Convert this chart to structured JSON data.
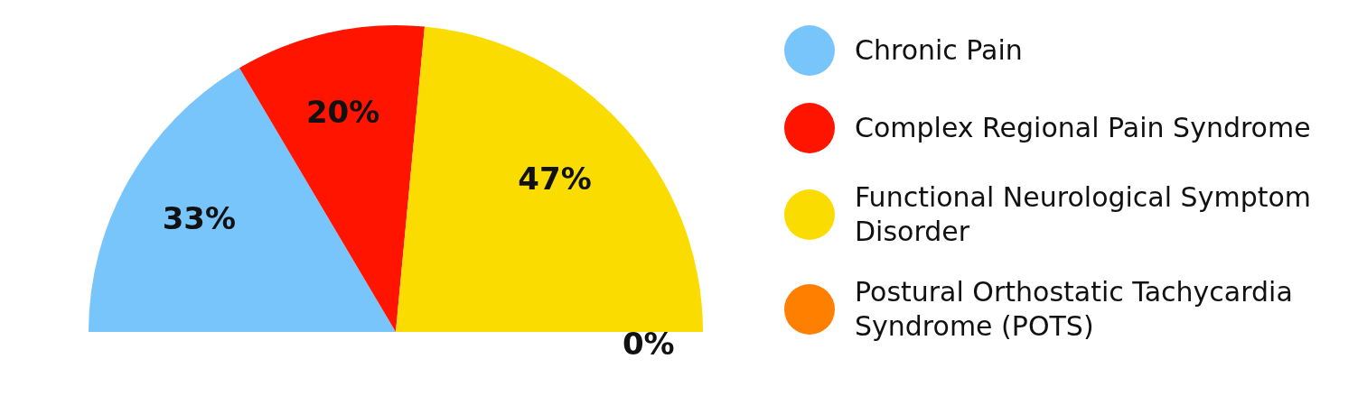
{
  "chart_data": {
    "type": "pie",
    "categories": [
      "Chronic Pain",
      "Complex Regional Pain Syndrome",
      "Functional Neurological Symptom Disorder",
      "Postural Orthostatic Tachycardia Syndrome (POTS)"
    ],
    "values": [
      33,
      20,
      47,
      0
    ],
    "colors": [
      "#78c5fb",
      "#ff1400",
      "#fadc00",
      "#ff8000"
    ],
    "value_labels": [
      "33%",
      "20%",
      "47%",
      "0%"
    ],
    "legend": "right"
  }
}
